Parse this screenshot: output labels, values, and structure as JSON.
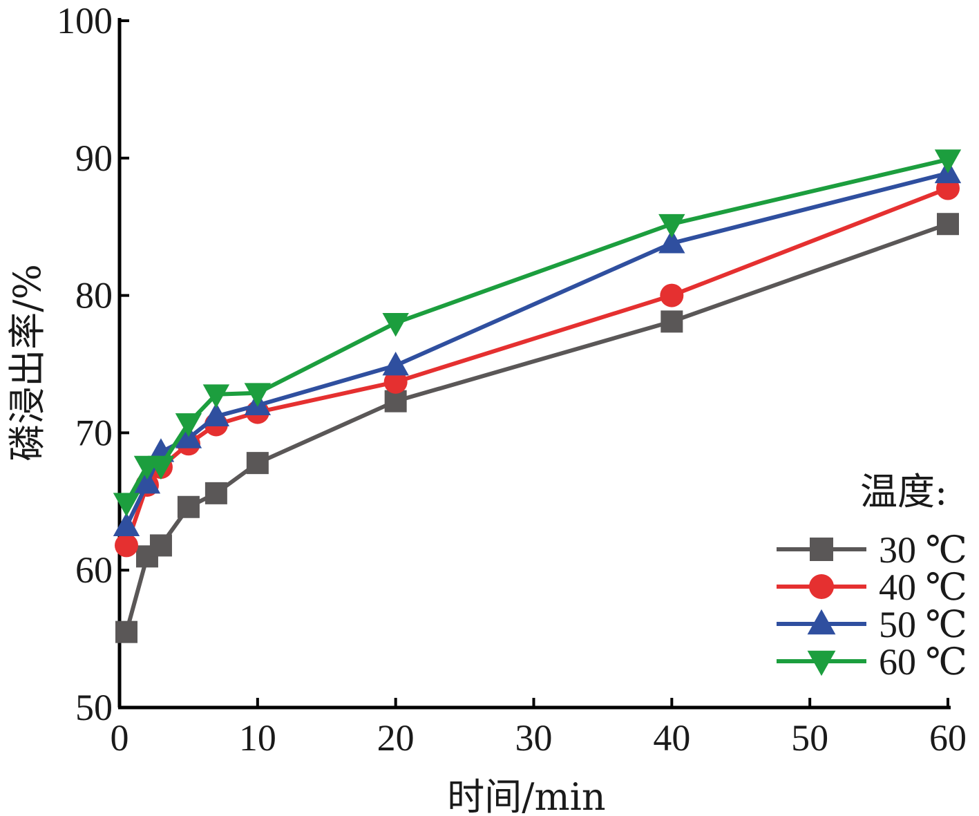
{
  "chart_data": {
    "type": "line",
    "xlabel": "时间/min",
    "ylabel": "磷浸出率/%",
    "xlim": [
      0,
      60
    ],
    "ylim": [
      50,
      100
    ],
    "xticks": [
      0,
      10,
      20,
      30,
      40,
      50,
      60
    ],
    "yticks": [
      50,
      60,
      70,
      80,
      90,
      100
    ],
    "grid": false,
    "legend_title": "温度:",
    "legend_position": "bottom-right",
    "series": [
      {
        "name": "30 ℃",
        "color": "#5a5757",
        "marker": "square",
        "x": [
          0.5,
          2,
          3,
          5,
          7,
          10,
          20,
          40,
          60
        ],
        "y": [
          55.5,
          61.0,
          61.8,
          64.6,
          65.6,
          67.8,
          72.3,
          78.1,
          85.2
        ]
      },
      {
        "name": "40 ℃",
        "color": "#e53030",
        "marker": "circle",
        "x": [
          0.5,
          2,
          3,
          5,
          7,
          10,
          20,
          40,
          60
        ],
        "y": [
          61.8,
          66.2,
          67.5,
          69.2,
          70.6,
          71.5,
          73.7,
          80.0,
          87.8
        ]
      },
      {
        "name": "50 ℃",
        "color": "#2f4f9f",
        "marker": "triangle-up",
        "x": [
          0.5,
          2,
          3,
          5,
          7,
          10,
          20,
          40,
          60
        ],
        "y": [
          63.2,
          66.3,
          68.6,
          69.6,
          71.2,
          72.0,
          74.9,
          83.8,
          88.9
        ]
      },
      {
        "name": "60 ℃",
        "color": "#1c9e3e",
        "marker": "triangle-down",
        "x": [
          0.5,
          2,
          3,
          5,
          7,
          10,
          20,
          40,
          60
        ],
        "y": [
          64.9,
          67.6,
          67.6,
          70.7,
          72.8,
          72.9,
          78.0,
          85.2,
          89.9
        ]
      }
    ]
  }
}
